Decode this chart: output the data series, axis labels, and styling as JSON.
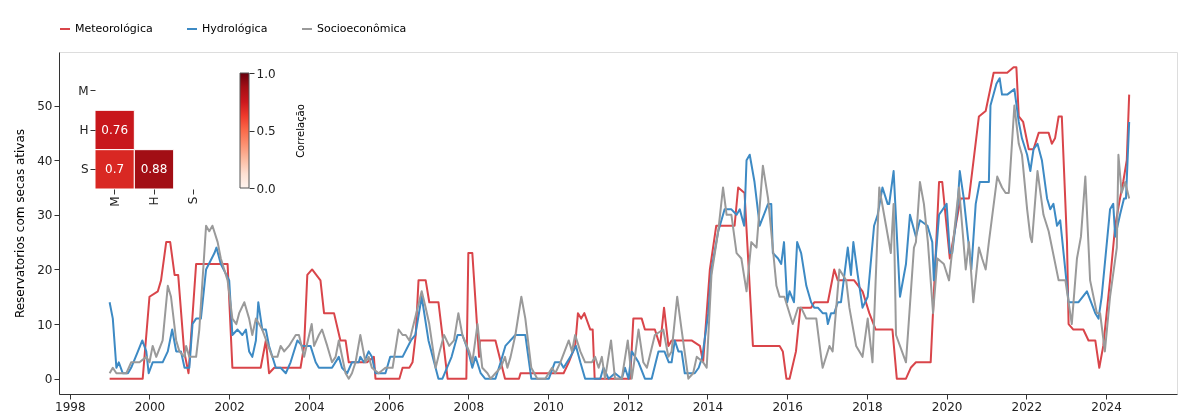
{
  "chart_data": [
    {
      "type": "line",
      "ylabel": "Reservatorios com secas ativas",
      "xlim": [
        1997.73,
        2025.78
      ],
      "xticks": [
        1998,
        2000,
        2002,
        2004,
        2006,
        2008,
        2010,
        2012,
        2014,
        2016,
        2018,
        2020,
        2022,
        2024
      ],
      "ylim": [
        -2.8,
        59.8
      ],
      "yticks": [
        0,
        10,
        20,
        30,
        40,
        50
      ],
      "grid": false,
      "legend": "top",
      "series": [
        {
          "name": "Meteorológica",
          "color": "#d9454a",
          "x": [
            1999.0,
            1999.83,
            2000.0,
            2000.21,
            2000.29,
            2000.42,
            2000.52,
            2000.63,
            2000.72,
            2000.87,
            2000.98,
            2001.17,
            2001.96,
            2002.08,
            2002.79,
            2002.92,
            2003.0,
            2003.13,
            2003.79,
            2003.88,
            2003.96,
            2004.08,
            2004.29,
            2004.38,
            2004.63,
            2004.79,
            2004.92,
            2005.0,
            2005.46,
            2005.63,
            2005.67,
            2006.27,
            2006.35,
            2006.52,
            2006.6,
            2006.68,
            2006.75,
            2006.93,
            2007.02,
            2007.25,
            2007.48,
            2007.95,
            2008.0,
            2008.1,
            2008.27,
            2008.29,
            2008.68,
            2008.92,
            2009.27,
            2009.31,
            2010.39,
            2010.52,
            2010.68,
            2010.75,
            2010.83,
            2010.91,
            2011.06,
            2011.12,
            2011.17,
            2012.06,
            2012.14,
            2012.35,
            2012.43,
            2012.68,
            2012.81,
            2012.91,
            2013.02,
            2013.1,
            2013.6,
            2013.81,
            2013.89,
            2014.06,
            2014.22,
            2014.68,
            2014.77,
            2014.93,
            2015.14,
            2015.81,
            2015.89,
            2015.98,
            2016.06,
            2016.22,
            2016.33,
            2016.6,
            2016.68,
            2017.02,
            2017.18,
            2017.27,
            2017.68,
            2017.89,
            2018.06,
            2018.22,
            2018.64,
            2018.75,
            2018.98,
            2019.1,
            2019.23,
            2019.6,
            2019.81,
            2019.89,
            2020.08,
            2020.35,
            2020.56,
            2020.81,
            2020.98,
            2021.18,
            2021.52,
            2021.68,
            2021.75,
            2021.81,
            2021.92,
            2022.06,
            2022.18,
            2022.31,
            2022.56,
            2022.64,
            2022.72,
            2022.81,
            2022.89,
            2023.02,
            2023.06,
            2023.18,
            2023.43,
            2023.56,
            2023.73,
            2023.83,
            2023.93,
            2024.1,
            2024.23,
            2024.35,
            2024.43,
            2024.52,
            2024.58
          ],
          "values": [
            0,
            0,
            15,
            16,
            18,
            25,
            25,
            19,
            19,
            5,
            1,
            21,
            21,
            2,
            2,
            7,
            1,
            2,
            2,
            6,
            19,
            20,
            18,
            12,
            12,
            7,
            7,
            3,
            3,
            4,
            0,
            0,
            2,
            2,
            3,
            8,
            18,
            18,
            14,
            14,
            0,
            0,
            23,
            23,
            4,
            7,
            7,
            0,
            0,
            1,
            1,
            3,
            6,
            12,
            11,
            12,
            9,
            9,
            0,
            0,
            11,
            11,
            9,
            9,
            6,
            13,
            6,
            7,
            7,
            6,
            3,
            20,
            28,
            28,
            35,
            34,
            6,
            6,
            5,
            0,
            0,
            5,
            13,
            13,
            14,
            14,
            20,
            18,
            18,
            16,
            12,
            9,
            9,
            0,
            0,
            2,
            3,
            3,
            36,
            36,
            22,
            33,
            33,
            48,
            49,
            56,
            56,
            57,
            57,
            48,
            47,
            42,
            42,
            45,
            45,
            43,
            44,
            48,
            48,
            25,
            10,
            9,
            9,
            7,
            7,
            2,
            6,
            18,
            28,
            33,
            36,
            40,
            52
          ]
        },
        {
          "name": "Hydrológica",
          "color": "#3d8ac4",
          "x": [
            1999.0,
            1999.08,
            1999.17,
            1999.23,
            1999.33,
            1999.46,
            1999.54,
            1999.71,
            1999.82,
            1999.92,
            1999.98,
            2000.08,
            2000.33,
            2000.46,
            2000.57,
            2000.67,
            2000.79,
            2000.88,
            2001.0,
            2001.08,
            2001.17,
            2001.29,
            2001.42,
            2001.63,
            2001.68,
            2001.79,
            2002.0,
            2002.08,
            2002.21,
            2002.33,
            2002.42,
            2002.5,
            2002.58,
            2002.67,
            2002.73,
            2002.83,
            2002.92,
            2003.0,
            2003.17,
            2003.29,
            2003.42,
            2003.54,
            2003.71,
            2003.83,
            2004.04,
            2004.17,
            2004.25,
            2004.58,
            2004.75,
            2004.83,
            2004.96,
            2005.08,
            2005.25,
            2005.29,
            2005.38,
            2005.5,
            2005.58,
            2005.67,
            2005.92,
            2006.04,
            2006.35,
            2006.56,
            2006.67,
            2006.83,
            2007.0,
            2007.25,
            2007.35,
            2007.58,
            2007.73,
            2007.85,
            2008.0,
            2008.1,
            2008.18,
            2008.31,
            2008.42,
            2008.68,
            2008.81,
            2008.93,
            2009.18,
            2009.43,
            2009.58,
            2010.02,
            2010.17,
            2010.31,
            2010.39,
            2010.56,
            2010.7,
            2010.81,
            2010.93,
            2011.31,
            2011.39,
            2011.52,
            2011.68,
            2011.85,
            2011.93,
            2012.02,
            2012.1,
            2012.27,
            2012.43,
            2012.6,
            2012.77,
            2012.92,
            2013.03,
            2013.1,
            2013.18,
            2013.27,
            2013.35,
            2013.43,
            2013.68,
            2013.78,
            2013.87,
            2014.02,
            2014.1,
            2014.27,
            2014.43,
            2014.6,
            2014.73,
            2014.81,
            2014.92,
            2014.98,
            2015.06,
            2015.18,
            2015.31,
            2015.52,
            2015.6,
            2015.64,
            2015.77,
            2015.85,
            2015.92,
            2016.0,
            2016.06,
            2016.17,
            2016.25,
            2016.35,
            2016.48,
            2016.6,
            2016.68,
            2016.77,
            2016.89,
            2016.98,
            2017.02,
            2017.1,
            2017.18,
            2017.27,
            2017.35,
            2017.52,
            2017.6,
            2017.66,
            2017.77,
            2017.89,
            2018.02,
            2018.18,
            2018.27,
            2018.39,
            2018.52,
            2018.56,
            2018.67,
            2018.83,
            2018.98,
            2019.08,
            2019.23,
            2019.33,
            2019.52,
            2019.64,
            2019.68,
            2019.81,
            2020.0,
            2020.08,
            2020.14,
            2020.27,
            2020.33,
            2020.43,
            2020.62,
            2020.73,
            2020.83,
            2021.06,
            2021.1,
            2021.25,
            2021.33,
            2021.39,
            2021.52,
            2021.7,
            2021.81,
            2021.89,
            2022.02,
            2022.1,
            2022.18,
            2022.28,
            2022.39,
            2022.52,
            2022.6,
            2022.68,
            2022.77,
            2022.85,
            2023.06,
            2023.31,
            2023.52,
            2023.73,
            2023.81,
            2023.89,
            2024.1,
            2024.18,
            2024.23,
            2024.35,
            2024.45,
            2024.5,
            2024.58
          ],
          "values": [
            14,
            11,
            2,
            3,
            1,
            1,
            2,
            5,
            7,
            5,
            1,
            3,
            3,
            5,
            9,
            5,
            5,
            2,
            2,
            10,
            11,
            11,
            20,
            23,
            24,
            21,
            18,
            8,
            9,
            8,
            9,
            5,
            4,
            7,
            14,
            9,
            9,
            6,
            2,
            2,
            1,
            3,
            7,
            6,
            6,
            3,
            2,
            2,
            4,
            2,
            1,
            3,
            3,
            4,
            3,
            5,
            4,
            1,
            1,
            4,
            4,
            7,
            8,
            15,
            7,
            0,
            0,
            4,
            8,
            8,
            5,
            2,
            4,
            1,
            0,
            0,
            3,
            6,
            8,
            8,
            0,
            0,
            3,
            3,
            2,
            4,
            6,
            3,
            0,
            0,
            2,
            0,
            1,
            0,
            2,
            0,
            5,
            3,
            0,
            0,
            5,
            5,
            3,
            3,
            7,
            5,
            5,
            1,
            1,
            2,
            4,
            12,
            20,
            27,
            31,
            31,
            30,
            31,
            28,
            40,
            41,
            36,
            28,
            32,
            32,
            23,
            22,
            21,
            25,
            14,
            16,
            14,
            25,
            23,
            17,
            14,
            13,
            13,
            12,
            12,
            10,
            12,
            12,
            14,
            14,
            24,
            19,
            25,
            19,
            13,
            15,
            28,
            30,
            35,
            32,
            32,
            38,
            15,
            21,
            30,
            26,
            29,
            28,
            25,
            18,
            30,
            32,
            23,
            23,
            31,
            38,
            33,
            20,
            32,
            36,
            36,
            50,
            54,
            55,
            52,
            52,
            53,
            47,
            44,
            41,
            38,
            42,
            43,
            40,
            33,
            31,
            32,
            28,
            29,
            14,
            14,
            16,
            12,
            11,
            15,
            31,
            32,
            26,
            30,
            33,
            33,
            47
          ]
        },
        {
          "name": "Socioeconômica",
          "color": "#9a9a9a",
          "x": [
            1999.0,
            1999.08,
            1999.17,
            1999.42,
            1999.54,
            1999.75,
            1999.92,
            2000.0,
            2000.08,
            2000.17,
            2000.33,
            2000.46,
            2000.54,
            2000.67,
            2000.75,
            2000.88,
            2000.92,
            2001.0,
            2001.17,
            2001.25,
            2001.42,
            2001.5,
            2001.58,
            2001.71,
            2001.79,
            2001.96,
            2002.08,
            2002.18,
            2002.25,
            2002.38,
            2002.5,
            2002.58,
            2002.67,
            2002.83,
            2003.08,
            2003.21,
            2003.29,
            2003.38,
            2003.5,
            2003.67,
            2003.75,
            2003.88,
            2004.07,
            2004.13,
            2004.25,
            2004.33,
            2004.46,
            2004.58,
            2004.67,
            2004.75,
            2004.92,
            2005.0,
            2005.08,
            2005.17,
            2005.29,
            2005.42,
            2005.5,
            2005.58,
            2005.75,
            2005.92,
            2006.1,
            2006.25,
            2006.35,
            2006.43,
            2006.52,
            2006.56,
            2006.83,
            2006.93,
            2007.02,
            2007.18,
            2007.28,
            2007.39,
            2007.52,
            2007.64,
            2007.75,
            2007.85,
            2008.02,
            2008.1,
            2008.23,
            2008.35,
            2008.48,
            2008.56,
            2008.68,
            2008.81,
            2008.92,
            2008.98,
            2009.06,
            2009.18,
            2009.33,
            2009.43,
            2009.58,
            2009.73,
            2009.93,
            2010.1,
            2010.18,
            2010.31,
            2010.52,
            2010.6,
            2010.68,
            2010.81,
            2010.93,
            2011.1,
            2011.18,
            2011.27,
            2011.35,
            2011.43,
            2011.58,
            2011.68,
            2011.85,
            2012.0,
            2012.1,
            2012.18,
            2012.27,
            2012.39,
            2012.48,
            2012.68,
            2012.89,
            2013.02,
            2013.1,
            2013.24,
            2013.35,
            2013.52,
            2013.64,
            2013.73,
            2013.89,
            2013.98,
            2014.1,
            2014.27,
            2014.39,
            2014.48,
            2014.6,
            2014.73,
            2014.85,
            2014.98,
            2015.1,
            2015.23,
            2015.39,
            2015.52,
            2015.73,
            2015.81,
            2015.93,
            2016.14,
            2016.27,
            2016.35,
            2016.48,
            2016.73,
            2016.85,
            2016.89,
            2017.06,
            2017.14,
            2017.31,
            2017.48,
            2017.56,
            2017.73,
            2017.89,
            2018.02,
            2018.14,
            2018.31,
            2018.48,
            2018.6,
            2018.67,
            2018.73,
            2018.98,
            2019.18,
            2019.23,
            2019.33,
            2019.43,
            2019.53,
            2019.66,
            2019.77,
            2019.93,
            2020.06,
            2020.31,
            2020.48,
            2020.56,
            2020.67,
            2020.81,
            2020.89,
            2020.98,
            2021.06,
            2021.27,
            2021.39,
            2021.48,
            2021.56,
            2021.7,
            2021.81,
            2021.89,
            2022.02,
            2022.1,
            2022.14,
            2022.28,
            2022.43,
            2022.56,
            2022.81,
            2022.98,
            2023.14,
            2023.27,
            2023.37,
            2023.48,
            2023.6,
            2023.77,
            2023.85,
            2023.97,
            2024.1,
            2024.27,
            2024.31,
            2024.39,
            2024.48,
            2024.58
          ],
          "values": [
            1,
            2,
            1,
            1,
            3,
            3,
            4,
            3,
            6,
            4,
            7,
            17,
            15,
            7,
            5,
            4,
            6,
            4,
            4,
            9,
            28,
            27,
            28,
            25,
            22,
            18,
            11,
            10,
            12,
            14,
            11,
            8,
            11,
            9,
            4,
            4,
            6,
            5,
            6,
            8,
            8,
            4,
            10,
            6,
            8,
            9,
            6,
            3,
            4,
            7,
            1,
            0,
            1,
            3,
            8,
            3,
            4,
            2,
            1,
            2,
            2,
            9,
            8,
            8,
            7,
            8,
            16,
            13,
            10,
            2,
            5,
            8,
            6,
            7,
            12,
            8,
            5,
            3,
            10,
            2,
            1,
            0,
            1,
            2,
            4,
            2,
            4,
            8,
            15,
            11,
            2,
            0,
            0,
            2,
            1,
            3,
            7,
            5,
            8,
            5,
            3,
            3,
            4,
            2,
            4,
            0,
            7,
            0,
            0,
            7,
            0,
            4,
            9,
            3,
            2,
            8,
            9,
            4,
            5,
            15,
            9,
            0,
            1,
            4,
            3,
            2,
            19,
            27,
            35,
            30,
            30,
            23,
            22,
            16,
            25,
            24,
            39,
            33,
            17,
            15,
            15,
            10,
            13,
            13,
            11,
            11,
            4,
            2,
            6,
            5,
            20,
            18,
            13,
            6,
            4,
            11,
            3,
            35,
            28,
            23,
            32,
            8,
            3,
            24,
            25,
            36,
            32,
            25,
            12,
            22,
            21,
            18,
            35,
            20,
            25,
            14,
            24,
            22,
            20,
            25,
            37,
            35,
            34,
            34,
            50,
            43,
            41,
            31,
            26,
            25,
            38,
            30,
            27,
            18,
            18,
            10,
            22,
            26,
            37,
            18,
            12,
            12,
            5,
            15,
            24,
            41,
            34,
            36,
            33
          ]
        }
      ]
    },
    {
      "type": "heatmap",
      "categories": [
        "M",
        "H",
        "S"
      ],
      "y_categories": [
        "M",
        "H",
        "S"
      ],
      "cells": [
        [
          null,
          null,
          null
        ],
        [
          0.76,
          null,
          null
        ],
        [
          0.7,
          0.88,
          null
        ]
      ],
      "data_labels": true,
      "clabel": "Correlação",
      "clim": [
        0,
        1
      ],
      "cticks": [
        {
          "value": 0,
          "label": "0.0"
        },
        {
          "value": 0.5,
          "label": "0.5"
        },
        {
          "value": 1,
          "label": "1.0"
        }
      ]
    }
  ]
}
